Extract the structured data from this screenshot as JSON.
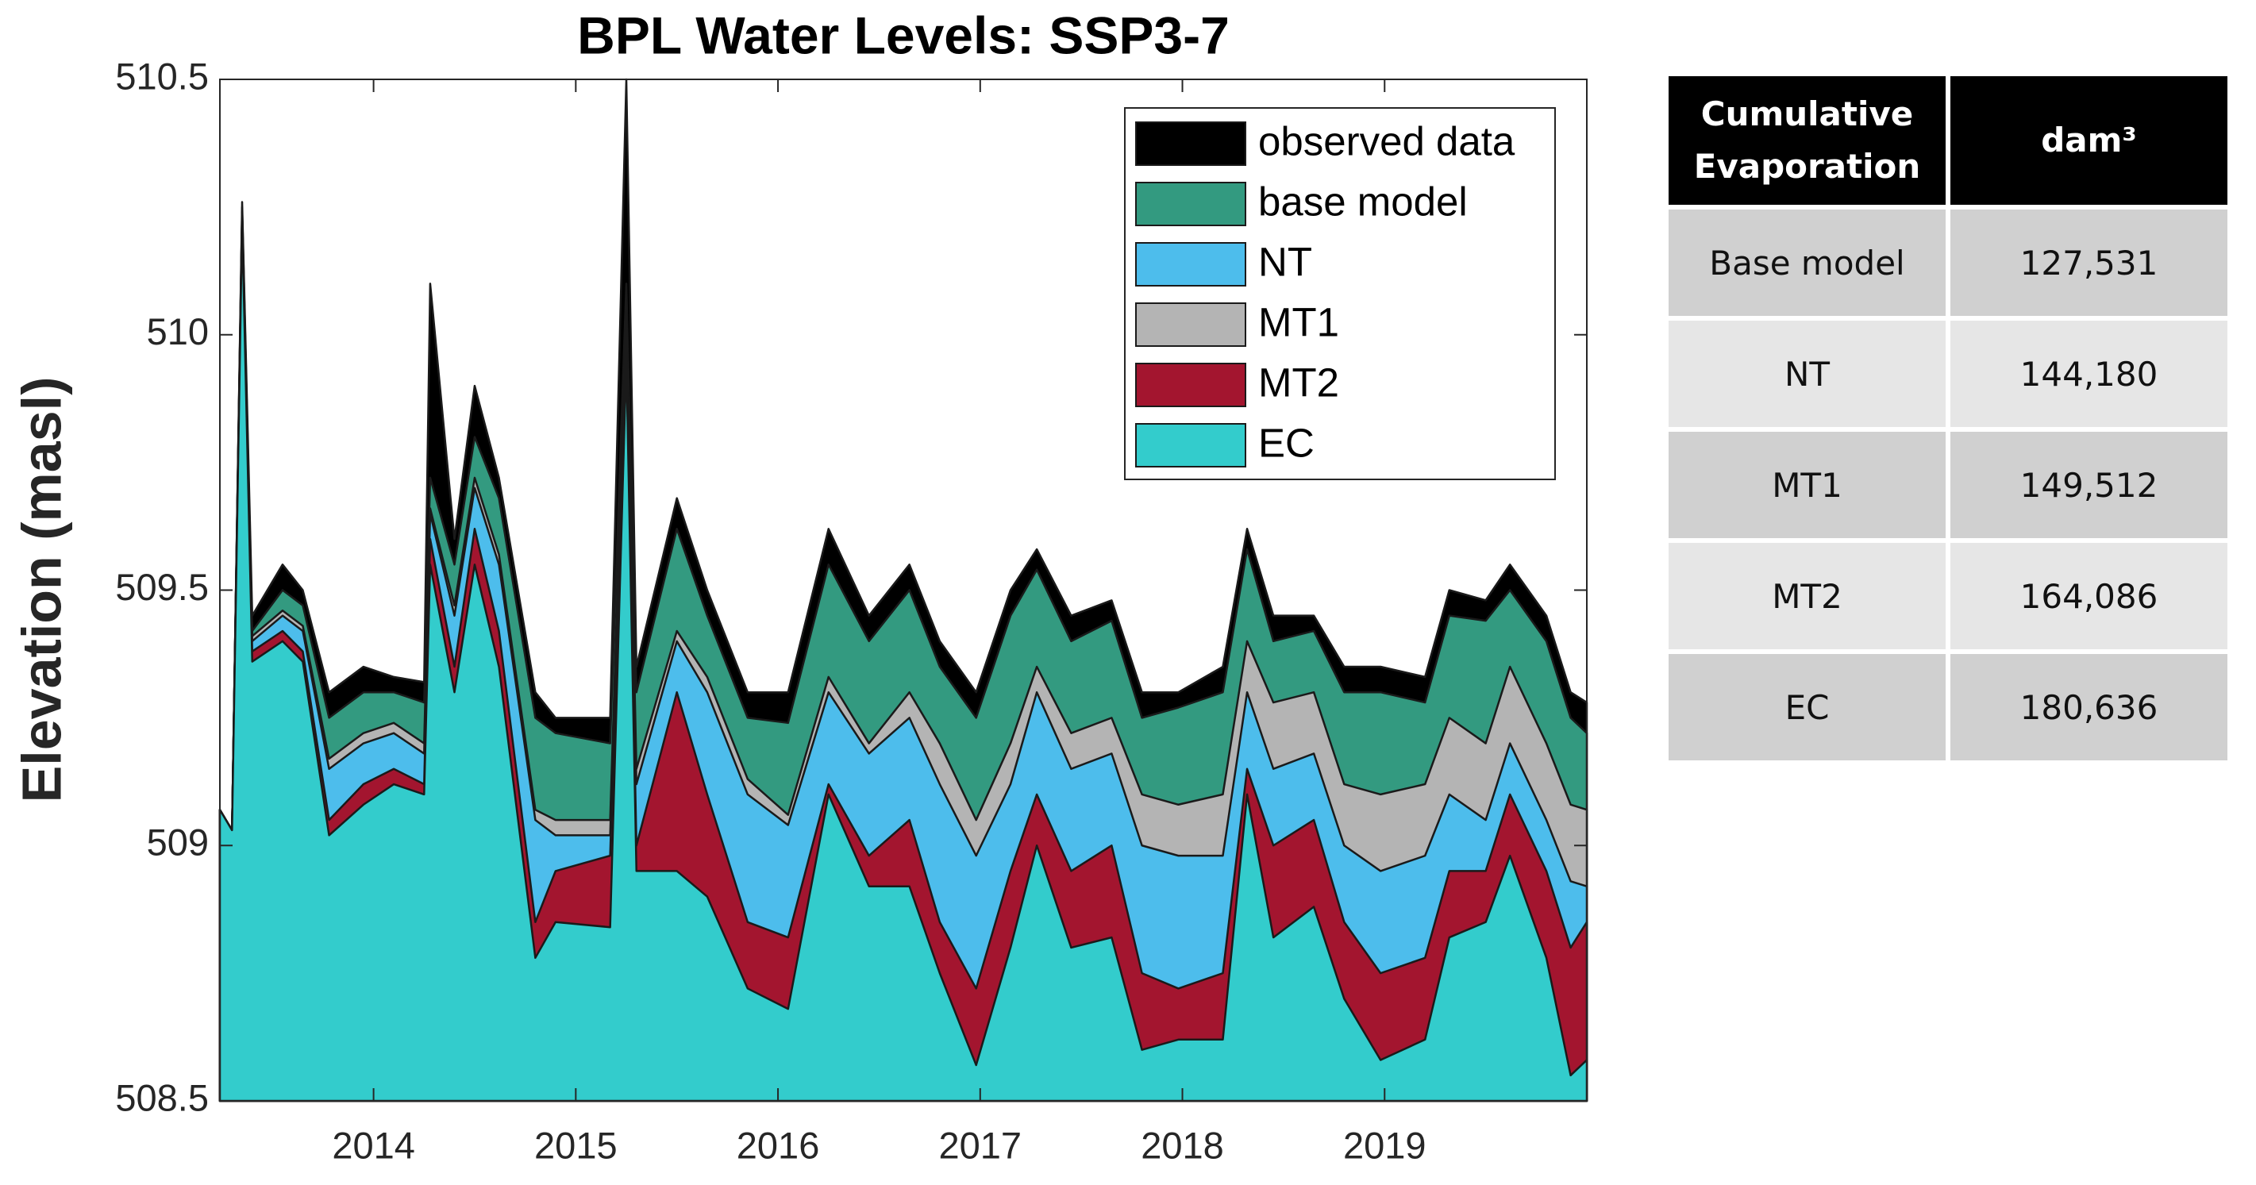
{
  "chart_data": {
    "type": "area",
    "title": "BPL Water Levels: SSP3-7",
    "ylabel": "Elevation (masl)",
    "xlim": [
      2013.24,
      2020.0
    ],
    "xticks": [
      2014,
      2015,
      2016,
      2017,
      2018,
      2019
    ],
    "ylim": [
      508.5,
      510.5
    ],
    "yticks": [
      508.5,
      509,
      509.5,
      510,
      510.5
    ],
    "legend": "upper right",
    "x": [
      2013.24,
      2013.3,
      2013.35,
      2013.4,
      2013.55,
      2013.65,
      2013.78,
      2013.95,
      2014.1,
      2014.25,
      2014.28,
      2014.4,
      2014.5,
      2014.62,
      2014.8,
      2014.9,
      2015.17,
      2015.25,
      2015.3,
      2015.5,
      2015.65,
      2015.85,
      2016.05,
      2016.25,
      2016.45,
      2016.65,
      2016.8,
      2016.98,
      2017.15,
      2017.28,
      2017.45,
      2017.65,
      2017.8,
      2017.98,
      2018.2,
      2018.32,
      2018.45,
      2018.65,
      2018.8,
      2018.98,
      2019.2,
      2019.32,
      2019.5,
      2019.62,
      2019.8,
      2019.92,
      2020.0
    ],
    "series": [
      {
        "name": "observed data",
        "color": "#000000",
        "values": [
          509.07,
          509.03,
          510.26,
          509.45,
          509.55,
          509.5,
          509.3,
          509.35,
          509.33,
          509.32,
          510.1,
          509.6,
          509.9,
          509.72,
          509.3,
          509.25,
          509.25,
          510.5,
          509.35,
          509.68,
          509.5,
          509.3,
          509.3,
          509.62,
          509.45,
          509.55,
          509.4,
          509.3,
          509.5,
          509.58,
          509.45,
          509.48,
          509.3,
          509.3,
          509.35,
          509.62,
          509.45,
          509.45,
          509.35,
          509.35,
          509.33,
          509.5,
          509.48,
          509.55,
          509.45,
          509.3,
          509.28
        ]
      },
      {
        "name": "base model",
        "color": "#339a80",
        "values": [
          509.07,
          509.03,
          510.25,
          509.42,
          509.5,
          509.47,
          509.25,
          509.3,
          509.3,
          509.28,
          509.72,
          509.55,
          509.8,
          509.68,
          509.25,
          509.22,
          509.2,
          510.1,
          509.3,
          509.62,
          509.45,
          509.25,
          509.24,
          509.55,
          509.4,
          509.5,
          509.35,
          509.25,
          509.45,
          509.54,
          509.4,
          509.44,
          509.25,
          509.27,
          509.3,
          509.58,
          509.4,
          509.42,
          509.3,
          509.3,
          509.28,
          509.45,
          509.44,
          509.5,
          509.4,
          509.25,
          509.22
        ]
      },
      {
        "name": "NT",
        "color": "#4dbdec",
        "values": [
          509.07,
          509.03,
          510.24,
          509.4,
          509.45,
          509.42,
          509.15,
          509.2,
          509.22,
          509.18,
          509.65,
          509.45,
          509.7,
          509.55,
          509.05,
          509.02,
          509.02,
          510.05,
          509.12,
          509.4,
          509.3,
          509.1,
          509.04,
          509.3,
          509.18,
          509.25,
          509.12,
          508.98,
          509.12,
          509.3,
          509.15,
          509.18,
          509.0,
          508.98,
          508.98,
          509.3,
          509.15,
          509.18,
          509.0,
          508.95,
          508.98,
          509.1,
          509.05,
          509.2,
          509.05,
          508.93,
          508.92
        ]
      },
      {
        "name": "MT1",
        "color": "#b4b4b4",
        "values": [
          509.07,
          509.03,
          510.24,
          509.41,
          509.46,
          509.43,
          509.17,
          509.22,
          509.24,
          509.2,
          509.66,
          509.47,
          509.72,
          509.57,
          509.07,
          509.05,
          509.05,
          510.06,
          509.15,
          509.42,
          509.33,
          509.13,
          509.06,
          509.33,
          509.2,
          509.3,
          509.2,
          509.05,
          509.2,
          509.35,
          509.22,
          509.25,
          509.1,
          509.08,
          509.1,
          509.4,
          509.28,
          509.3,
          509.12,
          509.1,
          509.12,
          509.25,
          509.2,
          509.35,
          509.2,
          509.08,
          509.07
        ]
      },
      {
        "name": "MT2",
        "color": "#a3152f",
        "values": [
          509.07,
          509.03,
          510.23,
          509.38,
          509.42,
          509.38,
          509.05,
          509.12,
          509.15,
          509.12,
          509.6,
          509.35,
          509.62,
          509.42,
          508.85,
          508.95,
          508.98,
          510.0,
          509.0,
          509.3,
          509.1,
          508.85,
          508.82,
          509.12,
          508.98,
          509.05,
          508.85,
          508.72,
          508.95,
          509.1,
          508.95,
          509.0,
          508.75,
          508.72,
          508.75,
          509.15,
          509.0,
          509.05,
          508.85,
          508.75,
          508.78,
          508.95,
          508.95,
          509.1,
          508.95,
          508.8,
          508.85
        ]
      },
      {
        "name": "EC",
        "color": "#33cccc",
        "values": [
          509.07,
          509.03,
          510.22,
          509.36,
          509.4,
          509.36,
          509.02,
          509.08,
          509.12,
          509.1,
          509.55,
          509.3,
          509.55,
          509.35,
          508.78,
          508.85,
          508.84,
          509.95,
          508.95,
          508.95,
          508.9,
          508.72,
          508.68,
          509.1,
          508.92,
          508.92,
          508.75,
          508.57,
          508.8,
          509.0,
          508.8,
          508.82,
          508.6,
          508.62,
          508.62,
          509.1,
          508.82,
          508.88,
          508.7,
          508.58,
          508.62,
          508.82,
          508.85,
          508.98,
          508.78,
          508.55,
          508.58
        ]
      }
    ]
  },
  "table": {
    "header": [
      "Cumulative Evaporation",
      "dam³"
    ],
    "rows": [
      [
        "Base model",
        "127,531"
      ],
      [
        "NT",
        "144,180"
      ],
      [
        "MT1",
        "149,512"
      ],
      [
        "MT2",
        "164,086"
      ],
      [
        "EC",
        "180,636"
      ]
    ]
  }
}
